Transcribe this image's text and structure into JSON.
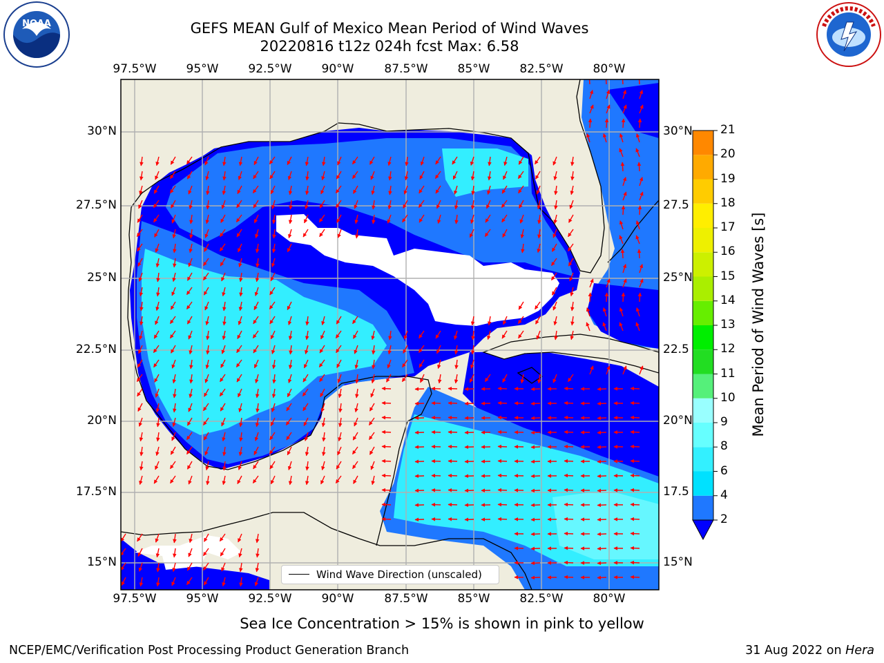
{
  "title_line1": "GEFS MEAN Gulf of Mexico Mean Period of Wind Waves",
  "title_line2": "20220816 t12z 024h fcst   Max: 6.58",
  "longitude_labels": [
    "97.5°W",
    "95°W",
    "92.5°W",
    "90°W",
    "87.5°W",
    "85°W",
    "82.5°W",
    "80°W"
  ],
  "latitude_labels_left": [
    "30°N",
    "27.5°N",
    "25°N",
    "22.5°N",
    "20°N",
    "17.5°N",
    "15°N"
  ],
  "latitude_labels_right": [
    "30°N",
    "27.5",
    "25°N",
    "22.5",
    "20°N",
    "17.5",
    "15°N"
  ],
  "colorbar": {
    "label": "Mean Period of Wind Waves [s]",
    "ticks": [
      "2",
      "4",
      "6",
      "8",
      "9",
      "10",
      "11",
      "12",
      "13",
      "14",
      "15",
      "16",
      "17",
      "18",
      "19",
      "20",
      "21"
    ],
    "colors": [
      "#1f78ff",
      "#00e1ff",
      "#33f0ff",
      "#66ffff",
      "#99ffff",
      "#55f07a",
      "#22dd22",
      "#00ee00",
      "#66ee00",
      "#aaee00",
      "#ccf000",
      "#eef000",
      "#ffee00",
      "#ffcc00",
      "#ffaa00",
      "#ff8800",
      "#ff5500",
      "#ff2200"
    ],
    "extend_color": "#0000ff"
  },
  "legend_text": "Wind Wave Direction (unscaled)",
  "sea_ice_note": "Sea Ice Concentration > 15% is shown in pink to yellow",
  "footer_left": "NCEP/EMC/Verification Post Processing Product Generation Branch",
  "footer_right_date": "31 Aug 2022 on",
  "footer_right_machine": "Hera",
  "logos": {
    "left": "NOAA",
    "right": "NATIONAL WEATHER SERVICE"
  },
  "colors": {
    "land": "#efedde",
    "grid": "#b0b0b0",
    "arrow": "#ff0000",
    "level_dark": "#0000ff",
    "level_mid": "#1f78ff",
    "level_light": "#33eeff",
    "level_pale": "#66f7ff"
  }
}
